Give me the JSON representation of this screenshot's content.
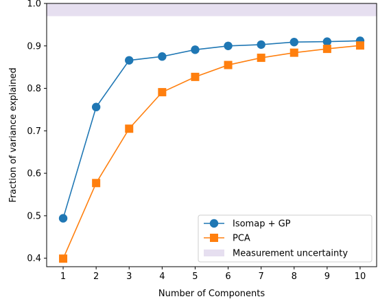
{
  "chart_data": {
    "type": "line",
    "title": "",
    "xlabel": "Number of Components",
    "ylabel": "Fraction of variance explained",
    "x": [
      1,
      2,
      3,
      4,
      5,
      6,
      7,
      8,
      9,
      10
    ],
    "xticks": [
      "1",
      "2",
      "3",
      "4",
      "5",
      "6",
      "7",
      "8",
      "9",
      "10"
    ],
    "yticks": [
      "0.4",
      "0.5",
      "0.6",
      "0.7",
      "0.8",
      "0.9",
      "1.0"
    ],
    "xlim": [
      0.5,
      10.5
    ],
    "ylim": [
      0.38,
      1.0
    ],
    "grid": false,
    "legend_position": "bottom-right",
    "series": [
      {
        "name": "Isomap + GP",
        "color": "#1f77b4",
        "marker": "circle",
        "values": [
          0.494,
          0.756,
          0.866,
          0.875,
          0.891,
          0.9,
          0.903,
          0.909,
          0.91,
          0.912
        ]
      },
      {
        "name": "PCA",
        "color": "#ff7f0e",
        "marker": "square",
        "values": [
          0.399,
          0.577,
          0.705,
          0.791,
          0.827,
          0.855,
          0.872,
          0.884,
          0.893,
          0.901
        ]
      }
    ],
    "band": {
      "name": "Measurement uncertainty",
      "color": "#e6dff0",
      "range": [
        0.97,
        1.0
      ]
    }
  }
}
